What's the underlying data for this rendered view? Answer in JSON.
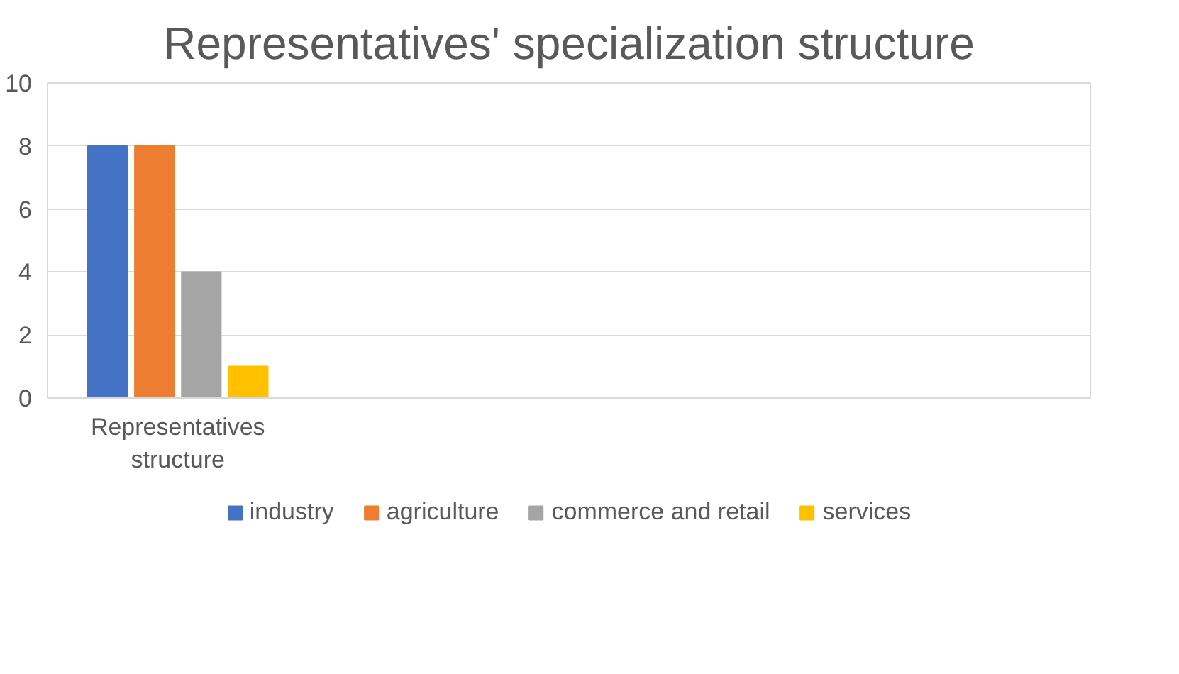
{
  "chart_data": {
    "type": "bar",
    "title": "Representatives' specialization structure",
    "categories": [
      "Representatives structure",
      null,
      null,
      null
    ],
    "series": [
      {
        "name": "industry",
        "color": "#4472c4",
        "values": [
          8,
          null,
          null,
          null
        ]
      },
      {
        "name": "agriculture",
        "color": "#ed7d31",
        "values": [
          8,
          null,
          null,
          null
        ]
      },
      {
        "name": "commerce and retail",
        "color": "#a5a5a5",
        "values": [
          4,
          null,
          null,
          null
        ]
      },
      {
        "name": "services",
        "color": "#ffc000",
        "values": [
          1,
          null,
          null,
          null
        ]
      }
    ],
    "ylim": [
      0,
      10
    ],
    "yticks": [
      0,
      2,
      4,
      6,
      8,
      10
    ],
    "grid": "y",
    "legend": "bottom"
  }
}
